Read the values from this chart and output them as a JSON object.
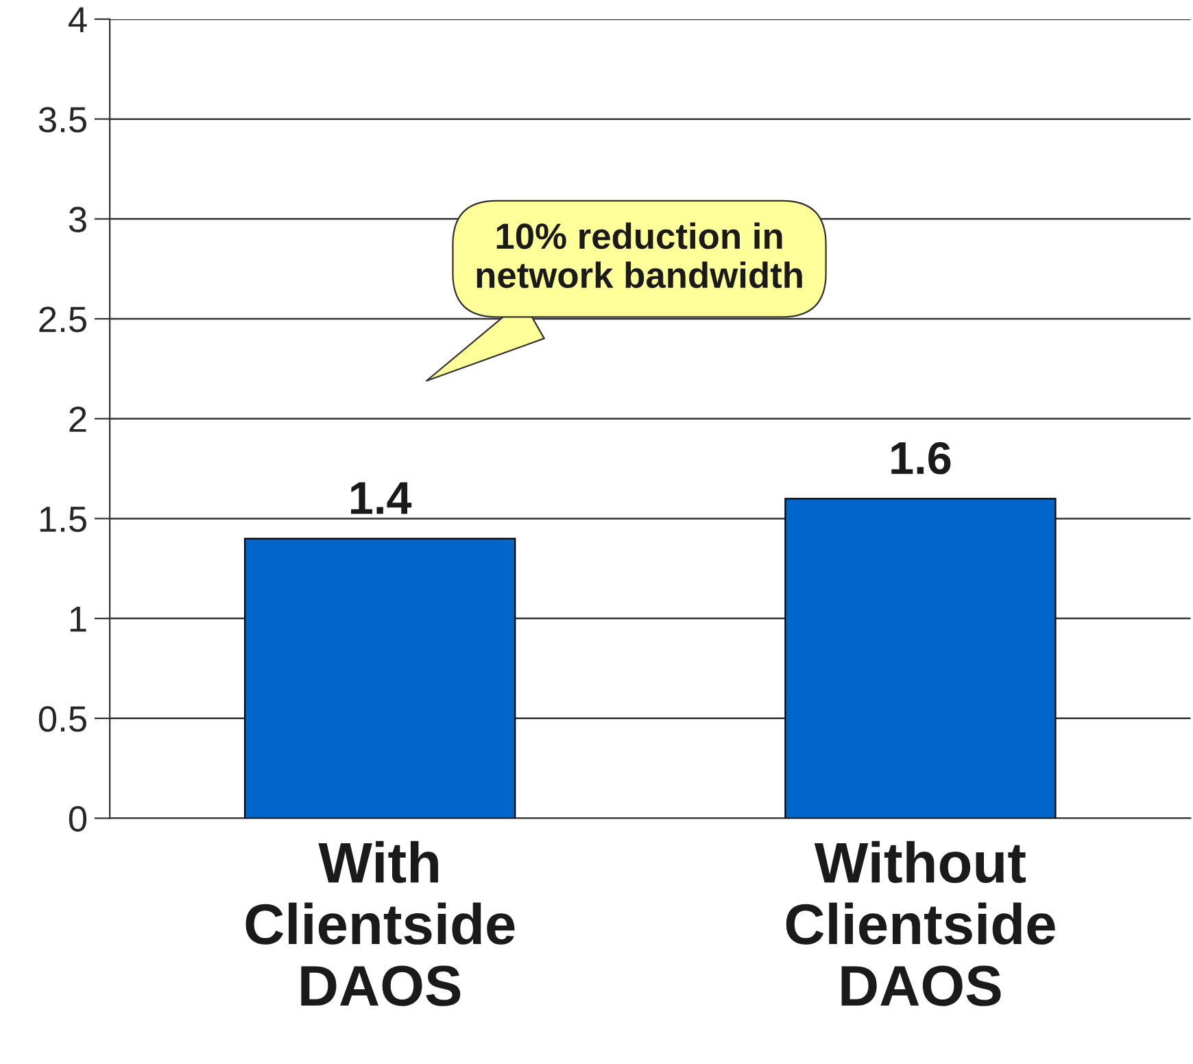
{
  "chart_data": {
    "type": "bar",
    "categories": [
      "With Clientside DAOS",
      "Without Clientside DAOS"
    ],
    "values": [
      1.4,
      1.6
    ],
    "color": "#0066cc",
    "data_labels": true,
    "ylim": [
      0,
      4
    ],
    "yticks": [
      0,
      0.5,
      1,
      1.5,
      2,
      2.5,
      3,
      3.5,
      4
    ],
    "grid": "y",
    "annotations": [
      "10% reduction in network bandwidth"
    ]
  }
}
